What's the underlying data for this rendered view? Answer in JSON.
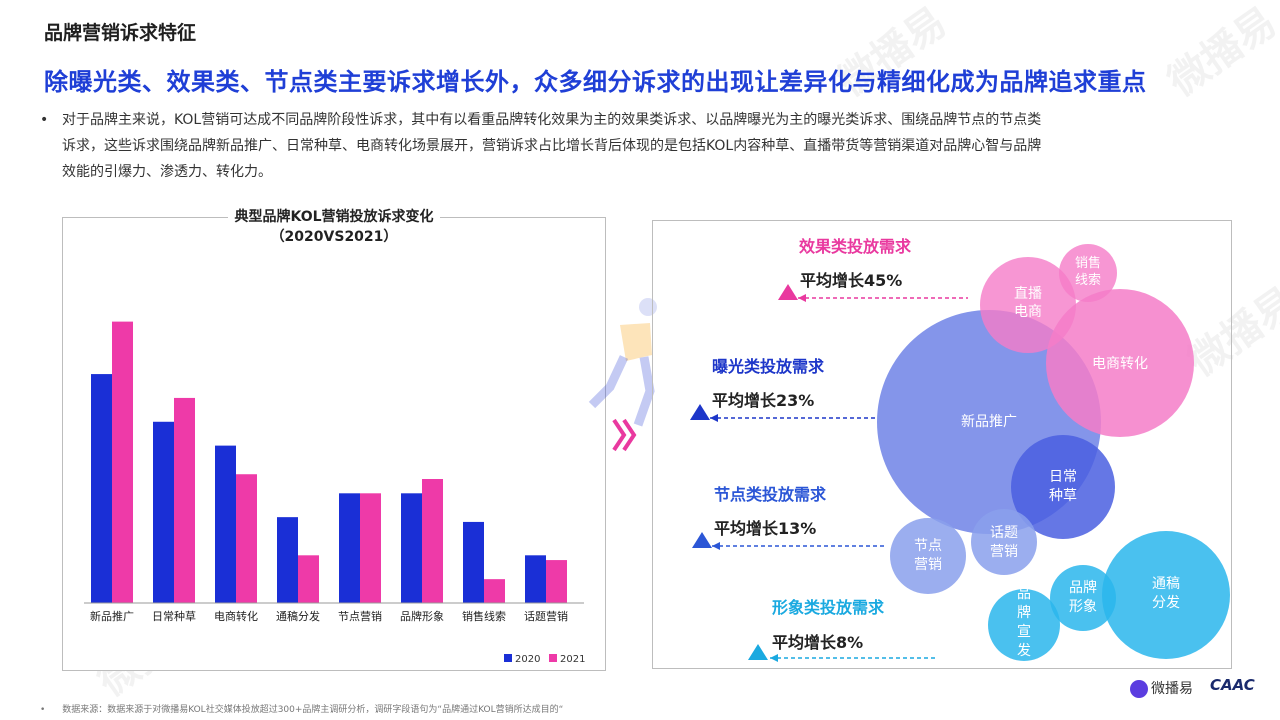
{
  "page": {
    "section_title": "品牌营销诉求特征",
    "headline": "除曝光类、效果类、节点类主要诉求增长外，众多细分诉求的出现让差异化与精细化成为品牌追求重点",
    "intro_bullet": "•",
    "intro_lines": [
      "对于品牌主来说，KOL营销可达成不同品牌阶段性诉求，其中有以看重品牌转化效果为主的效果类诉求、以品牌曝光为主的曝光类诉求、围绕品牌节点的节点类",
      "诉求，这些诉求围绕品牌新品推广、日常种草、电商转化场景展开，营销诉求占比增长背后体现的是包括KOL内容种草、直播带货等营销渠道对品牌心智与品牌",
      "效能的引爆力、渗透力、转化力。"
    ],
    "source": "数据来源：数据来源于对微播易KOL社交媒体投放超过300+品牌主调研分析，调研字段语句为“品牌通过KOL营销所达成目的“",
    "source_bullet": "•",
    "brand_logo": "微播易",
    "caac_logo": "CAAC",
    "watermark": "微播易"
  },
  "colors": {
    "headline": "#1f3fd6",
    "series_2020": "#1a2fd6",
    "series_2021": "#ee3aa8",
    "effect": "#e9399f",
    "exposure": "#1d36c9",
    "node": "#2b56d6",
    "image": "#1aa9e0"
  },
  "chart_data": {
    "type": "bar",
    "title": "典型品牌KOL营销投放诉求变化",
    "subtitle": "（2020VS2021）",
    "categories": [
      "新品推广",
      "日常种草",
      "电商转化",
      "通稿分发",
      "节点营销",
      "品牌形象",
      "销售线索",
      "话题营销"
    ],
    "series": [
      {
        "name": "2020",
        "values": [
          0.48,
          0.38,
          0.33,
          0.18,
          0.23,
          0.23,
          0.17,
          0.1
        ],
        "color": "#1a2fd6"
      },
      {
        "name": "2021",
        "values": [
          0.59,
          0.43,
          0.27,
          0.1,
          0.23,
          0.26,
          0.05,
          0.09
        ],
        "color": "#ee3aa8"
      }
    ],
    "ylim": [
      0,
      0.65
    ],
    "grid": false,
    "legend": "bottom-right"
  },
  "groups": [
    {
      "name": "效果类投放需求",
      "growth": "平均增长45%",
      "color": "#e9399f"
    },
    {
      "name": "曝光类投放需求",
      "growth": "平均增长23%",
      "color": "#1d36c9"
    },
    {
      "name": "节点类投放需求",
      "growth": "平均增长13%",
      "color": "#2b56d6"
    },
    {
      "name": "形象类投放需求",
      "growth": "平均增长8%",
      "color": "#1aa9e0"
    }
  ],
  "bubbles": [
    {
      "label": "新品推广",
      "color": "#6f83e6"
    },
    {
      "label": "电商转化",
      "color": "#f57cc8"
    },
    {
      "label": "直播\n电商",
      "color": "#f57cc8"
    },
    {
      "label": "销售\n线索",
      "color": "#f57cc8"
    },
    {
      "label": "日常\n种草",
      "color": "#4a5fe0"
    },
    {
      "label": "节点\n营销",
      "color": "#8aa0ec"
    },
    {
      "label": "话题\n营销",
      "color": "#8aa0ec"
    },
    {
      "label": "通稿\n分发",
      "color": "#2ab6ec"
    },
    {
      "label": "品牌\n形象",
      "color": "#2ab6ec"
    },
    {
      "label": "品\n牌\n宣\n发",
      "color": "#2ab6ec"
    }
  ]
}
